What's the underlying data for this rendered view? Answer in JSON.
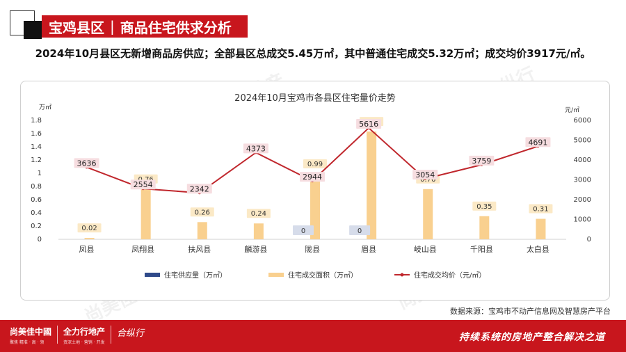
{
  "header": {
    "region": "宝鸡县区",
    "topic": "商品住宅供求分析"
  },
  "summary": "2024年10月县区无新增商品房供应；全部县区总成交5.45万㎡，其中普通住宅成交5.32万㎡；成交均价3917元/㎡。",
  "source": "数据来源：宝鸡市不动产信息网及智慧房产平台",
  "footer": {
    "logo1": "尚美佳中國",
    "logo1_sub": "聚焦 精准 · 高 · 领",
    "logo2": "全力行地产",
    "logo2_sub": "资深土地 · 营销 · 开发",
    "logo3": "合纵行",
    "slogan": "持续系统的房地产整合解决之道"
  },
  "colors": {
    "accent": "#c8161d",
    "supply": "#2f4a8a",
    "deal_area": "#f9d08f",
    "price_line": "#c0272d"
  },
  "chart_data": {
    "type": "bar",
    "title": "2024年10月宝鸡市各县区住宅量价走势",
    "categories": [
      "凤县",
      "凤翔县",
      "扶风县",
      "麟游县",
      "陇县",
      "眉县",
      "岐山县",
      "千阳县",
      "太白县"
    ],
    "y_left": {
      "unit": "万㎡",
      "range": [
        0,
        1.8
      ],
      "ticks": [
        "0",
        "0.2",
        "0.4",
        "0.6",
        "0.8",
        "1",
        "1.2",
        "1.4",
        "1.6",
        "1.8"
      ]
    },
    "y_right": {
      "unit": "元/㎡",
      "range": [
        0,
        6000
      ],
      "ticks": [
        "0",
        "1000",
        "2000",
        "3000",
        "4000",
        "5000",
        "6000"
      ]
    },
    "series": [
      {
        "name": "住宅供应量（万㎡）",
        "type": "bar",
        "axis": "left",
        "values": [
          0,
          0,
          0,
          0,
          0,
          0,
          0,
          0,
          0
        ],
        "labels": [
          "",
          "",
          "",
          "",
          "0",
          "0",
          "",
          "",
          ""
        ]
      },
      {
        "name": "住宅成交面积（万㎡）",
        "type": "bar",
        "axis": "left",
        "values": [
          0.02,
          0.76,
          0.26,
          0.24,
          0.99,
          1.63,
          0.76,
          0.35,
          0.31
        ],
        "labels": [
          "0.02",
          "0.76",
          "0.26",
          "0.24",
          "0.99",
          "1.63",
          "0.76",
          "0.35",
          "0.31"
        ]
      },
      {
        "name": "住宅成交均价（元/㎡）",
        "type": "line",
        "axis": "right",
        "values": [
          3636,
          2554,
          2342,
          4373,
          2944,
          5616,
          3054,
          3759,
          4691
        ],
        "labels": [
          "3636",
          "2554",
          "2342",
          "4373",
          "2944",
          "5616",
          "3054",
          "3759",
          "4691"
        ]
      }
    ],
    "legend": "bottom",
    "grid": false
  }
}
